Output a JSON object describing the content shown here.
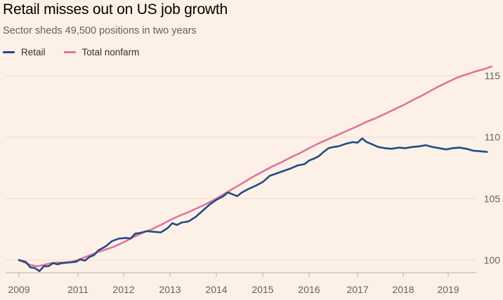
{
  "chart_data": {
    "type": "line",
    "title": "Retail misses out on US job growth",
    "subtitle": "Sector sheds 49,500 positions in two years",
    "xlabel": "",
    "ylabel": "",
    "x_ticks": [
      "2009",
      "2011",
      "2012",
      "2013",
      "2014",
      "2015",
      "2016",
      "2017",
      "2018",
      "2019"
    ],
    "y_ticks": [
      100,
      105,
      110,
      115
    ],
    "ylim": [
      98.8,
      116.8
    ],
    "x_range": [
      2009.7,
      2019.95
    ],
    "legend_position": "top-left",
    "series": [
      {
        "name": "Retail",
        "color": "#224a86",
        "points": [
          [
            2009.7,
            100.0
          ],
          [
            2009.85,
            99.85
          ],
          [
            2009.95,
            99.4
          ],
          [
            2010.05,
            99.35
          ],
          [
            2010.15,
            99.1
          ],
          [
            2010.25,
            99.5
          ],
          [
            2010.35,
            99.5
          ],
          [
            2010.45,
            99.75
          ],
          [
            2010.55,
            99.65
          ],
          [
            2010.65,
            99.75
          ],
          [
            2010.8,
            99.8
          ],
          [
            2010.95,
            99.85
          ],
          [
            2011.05,
            100.05
          ],
          [
            2011.15,
            99.95
          ],
          [
            2011.25,
            100.25
          ],
          [
            2011.35,
            100.4
          ],
          [
            2011.45,
            100.8
          ],
          [
            2011.6,
            101.1
          ],
          [
            2011.75,
            101.55
          ],
          [
            2011.9,
            101.75
          ],
          [
            2012.05,
            101.8
          ],
          [
            2012.15,
            101.75
          ],
          [
            2012.25,
            102.15
          ],
          [
            2012.35,
            102.2
          ],
          [
            2012.5,
            102.35
          ],
          [
            2012.65,
            102.3
          ],
          [
            2012.8,
            102.25
          ],
          [
            2012.95,
            102.6
          ],
          [
            2013.05,
            103.0
          ],
          [
            2013.15,
            102.85
          ],
          [
            2013.25,
            103.05
          ],
          [
            2013.4,
            103.15
          ],
          [
            2013.55,
            103.5
          ],
          [
            2013.7,
            104.0
          ],
          [
            2013.85,
            104.5
          ],
          [
            2014.0,
            104.9
          ],
          [
            2014.15,
            105.2
          ],
          [
            2014.25,
            105.5
          ],
          [
            2014.35,
            105.35
          ],
          [
            2014.45,
            105.2
          ],
          [
            2014.55,
            105.5
          ],
          [
            2014.7,
            105.8
          ],
          [
            2014.85,
            106.05
          ],
          [
            2015.0,
            106.35
          ],
          [
            2015.15,
            106.85
          ],
          [
            2015.3,
            107.05
          ],
          [
            2015.45,
            107.25
          ],
          [
            2015.6,
            107.45
          ],
          [
            2015.75,
            107.7
          ],
          [
            2015.9,
            107.8
          ],
          [
            2016.0,
            108.1
          ],
          [
            2016.1,
            108.25
          ],
          [
            2016.2,
            108.45
          ],
          [
            2016.3,
            108.8
          ],
          [
            2016.4,
            109.1
          ],
          [
            2016.5,
            109.2
          ],
          [
            2016.6,
            109.25
          ],
          [
            2016.75,
            109.45
          ],
          [
            2016.9,
            109.6
          ],
          [
            2017.0,
            109.55
          ],
          [
            2017.1,
            109.9
          ],
          [
            2017.2,
            109.6
          ],
          [
            2017.3,
            109.45
          ],
          [
            2017.45,
            109.2
          ],
          [
            2017.6,
            109.1
          ],
          [
            2017.75,
            109.05
          ],
          [
            2017.9,
            109.15
          ],
          [
            2018.05,
            109.1
          ],
          [
            2018.2,
            109.2
          ],
          [
            2018.35,
            109.25
          ],
          [
            2018.5,
            109.35
          ],
          [
            2018.65,
            109.2
          ],
          [
            2018.8,
            109.1
          ],
          [
            2018.95,
            109.0
          ],
          [
            2019.1,
            109.1
          ],
          [
            2019.25,
            109.15
          ],
          [
            2019.4,
            109.05
          ],
          [
            2019.55,
            108.9
          ],
          [
            2019.7,
            108.85
          ],
          [
            2019.85,
            108.8
          ]
        ]
      },
      {
        "name": "Total nonfarm",
        "color": "#e0739a",
        "points": [
          [
            2009.7,
            100.0
          ],
          [
            2009.85,
            99.75
          ],
          [
            2009.95,
            99.6
          ],
          [
            2010.1,
            99.5
          ],
          [
            2010.25,
            99.6
          ],
          [
            2010.4,
            99.75
          ],
          [
            2010.55,
            99.8
          ],
          [
            2010.7,
            99.8
          ],
          [
            2010.85,
            99.85
          ],
          [
            2011.0,
            100.0
          ],
          [
            2011.2,
            100.3
          ],
          [
            2011.4,
            100.6
          ],
          [
            2011.6,
            100.85
          ],
          [
            2011.8,
            101.1
          ],
          [
            2012.0,
            101.45
          ],
          [
            2012.2,
            101.85
          ],
          [
            2012.4,
            102.2
          ],
          [
            2012.6,
            102.5
          ],
          [
            2012.8,
            102.85
          ],
          [
            2013.0,
            103.25
          ],
          [
            2013.2,
            103.6
          ],
          [
            2013.4,
            103.9
          ],
          [
            2013.6,
            104.25
          ],
          [
            2013.8,
            104.6
          ],
          [
            2014.0,
            105.0
          ],
          [
            2014.2,
            105.45
          ],
          [
            2014.4,
            105.9
          ],
          [
            2014.6,
            106.35
          ],
          [
            2014.8,
            106.8
          ],
          [
            2015.0,
            107.2
          ],
          [
            2015.2,
            107.6
          ],
          [
            2015.4,
            107.95
          ],
          [
            2015.6,
            108.35
          ],
          [
            2015.8,
            108.7
          ],
          [
            2016.0,
            109.1
          ],
          [
            2016.2,
            109.5
          ],
          [
            2016.4,
            109.85
          ],
          [
            2016.6,
            110.2
          ],
          [
            2016.8,
            110.55
          ],
          [
            2017.0,
            110.9
          ],
          [
            2017.2,
            111.25
          ],
          [
            2017.4,
            111.55
          ],
          [
            2017.6,
            111.9
          ],
          [
            2017.8,
            112.25
          ],
          [
            2018.0,
            112.6
          ],
          [
            2018.2,
            113.0
          ],
          [
            2018.4,
            113.35
          ],
          [
            2018.6,
            113.75
          ],
          [
            2018.8,
            114.15
          ],
          [
            2019.0,
            114.5
          ],
          [
            2019.2,
            114.85
          ],
          [
            2019.4,
            115.1
          ],
          [
            2019.6,
            115.35
          ],
          [
            2019.8,
            115.55
          ],
          [
            2019.95,
            115.75
          ]
        ]
      }
    ]
  },
  "colors": {
    "background": "#fdf1e7",
    "gridline": "#e9ddd3",
    "baseline": "#b7aca4"
  }
}
